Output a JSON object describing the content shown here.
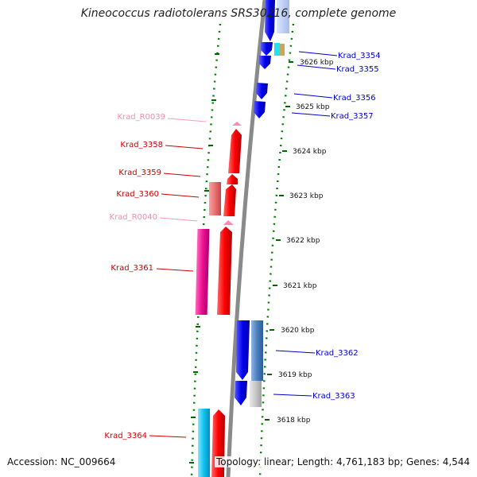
{
  "title": "Kineococcus radiotolerans SRS30216, complete genome",
  "footer": {
    "accession": "Accession: NC_009664",
    "topology": "Topology: linear; Length: 4,761,183 bp; Genes: 4,544"
  },
  "colors": {
    "forward_gene": "#e00000",
    "reverse_gene": "#0000e0",
    "rna_label": "#ff88aa",
    "forward_label": "#cc0000",
    "reverse_label": "#0000cc",
    "dotted_ring": "#007700",
    "backbone": "#888888"
  },
  "ticks": [
    "3626 kbp",
    "3625 kbp",
    "3624 kbp",
    "3623 kbp",
    "3622 kbp",
    "3621 kbp",
    "3620 kbp",
    "3619 kbp",
    "3618 kbp"
  ],
  "labels_left": [
    {
      "text": "Krad_R0039",
      "kind": "rna"
    },
    {
      "text": "Krad_3358",
      "kind": "forward"
    },
    {
      "text": "Krad_3359",
      "kind": "forward"
    },
    {
      "text": "Krad_3360",
      "kind": "forward"
    },
    {
      "text": "Krad_R0040",
      "kind": "rna"
    },
    {
      "text": "Krad_3361",
      "kind": "forward"
    },
    {
      "text": "Krad_3364",
      "kind": "forward"
    }
  ],
  "labels_right": [
    {
      "text": "Krad_3354"
    },
    {
      "text": "Krad_3355"
    },
    {
      "text": "Krad_3356"
    },
    {
      "text": "Krad_3357"
    },
    {
      "text": "Krad_3362"
    },
    {
      "text": "Krad_3363"
    }
  ]
}
